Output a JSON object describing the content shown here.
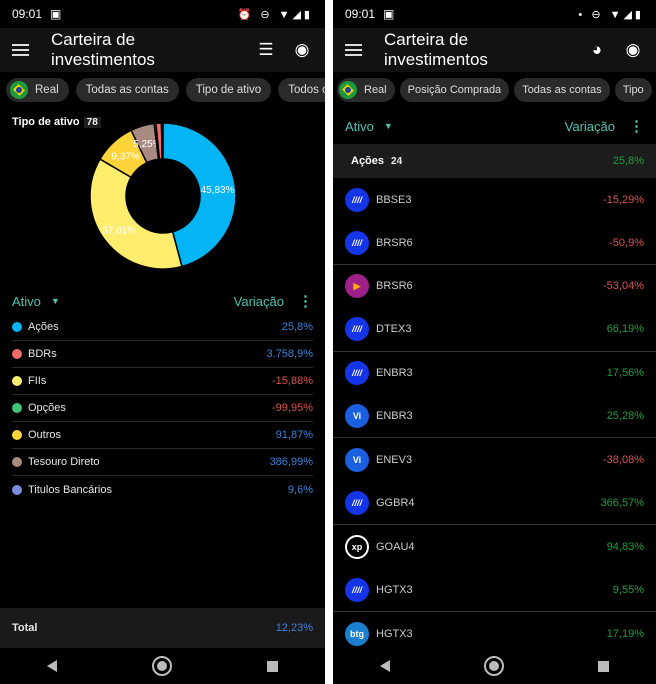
{
  "status": {
    "time": "09:01"
  },
  "app": {
    "title": "Carteira de investimentos"
  },
  "left": {
    "chips": [
      "Real",
      "Todas as contas",
      "Tipo de ativo",
      "Todos os"
    ],
    "section_title": "Tipo de ativo",
    "section_count": "78",
    "chart_data": {
      "type": "pie",
      "donut": true,
      "slices": [
        {
          "name": "Ações",
          "value": 45.83,
          "label": "45,83%",
          "color": "#03b5f5"
        },
        {
          "name": "FIIs",
          "value": 37.61,
          "label": "37,61%",
          "color": "#ffee6e"
        },
        {
          "name": "Outros",
          "value": 9.37,
          "label": "9,37%",
          "color": "#ffd43b"
        },
        {
          "name": "Tesouro Direto",
          "value": 5.25,
          "label": "5,25%",
          "color": "#a88a80"
        },
        {
          "name": "Opções",
          "value": 0.4,
          "label": "",
          "color": "#3fc47a"
        },
        {
          "name": "BDRs",
          "value": 1.2,
          "label": "",
          "color": "#f26b6b"
        },
        {
          "name": "Titulos Bancários",
          "value": 0.34,
          "label": "",
          "color": "#7b8cde"
        }
      ]
    },
    "header": {
      "col1": "Ativo",
      "col2": "Variação"
    },
    "rows": [
      {
        "label": "Ações",
        "value": "25,8%",
        "color": "#03b5f5",
        "tone": "blu"
      },
      {
        "label": "BDRs",
        "value": "3.758,9%",
        "color": "#f26b6b",
        "tone": "blu"
      },
      {
        "label": "FIIs",
        "value": "-15,88%",
        "color": "#ffee6e",
        "tone": "neg"
      },
      {
        "label": "Opções",
        "value": "-99,95%",
        "color": "#3fc47a",
        "tone": "neg"
      },
      {
        "label": "Outros",
        "value": "91,87%",
        "color": "#ffd43b",
        "tone": "blu"
      },
      {
        "label": "Tesouro Direto",
        "value": "386,99%",
        "color": "#a88a80",
        "tone": "blu"
      },
      {
        "label": "Titulos Bancários",
        "value": "9,6%",
        "color": "#7b8cde",
        "tone": "blu"
      }
    ],
    "total": {
      "label": "Total",
      "value": "12,23%"
    }
  },
  "right": {
    "chips": [
      "Real",
      "Posição Comprada",
      "Todas as contas",
      "Tipo"
    ],
    "header": {
      "col1": "Ativo",
      "col2": "Variação"
    },
    "group": {
      "label": "Ações",
      "count": "24",
      "value": "25,8%"
    },
    "rows": [
      {
        "ticker": "BBSE3",
        "value": "-15,29%",
        "tone": "neg",
        "logo": "stripes"
      },
      {
        "ticker": "BRSR6",
        "value": "-50,9%",
        "tone": "neg",
        "logo": "stripes"
      },
      {
        "ticker": "BRSR6",
        "value": "-53,04%",
        "tone": "neg",
        "logo": "triangle"
      },
      {
        "ticker": "DTEX3",
        "value": "66,19%",
        "tone": "pos",
        "logo": "stripes"
      },
      {
        "ticker": "ENBR3",
        "value": "17,56%",
        "tone": "pos",
        "logo": "stripes"
      },
      {
        "ticker": "ENBR3",
        "value": "25,28%",
        "tone": "pos",
        "logo": "vi"
      },
      {
        "ticker": "ENEV3",
        "value": "-38,08%",
        "tone": "neg",
        "logo": "vi"
      },
      {
        "ticker": "GGBR4",
        "value": "366,57%",
        "tone": "pos",
        "logo": "stripes"
      },
      {
        "ticker": "GOAU4",
        "value": "94,83%",
        "tone": "pos",
        "logo": "xp"
      },
      {
        "ticker": "HGTX3",
        "value": "9,55%",
        "tone": "pos",
        "logo": "stripes"
      },
      {
        "ticker": "HGTX3",
        "value": "17,19%",
        "tone": "pos",
        "logo": "btg"
      }
    ],
    "logo_text": {
      "vi": "Vi",
      "xp": "xp",
      "btg": "btg",
      "stripes": "////"
    }
  }
}
